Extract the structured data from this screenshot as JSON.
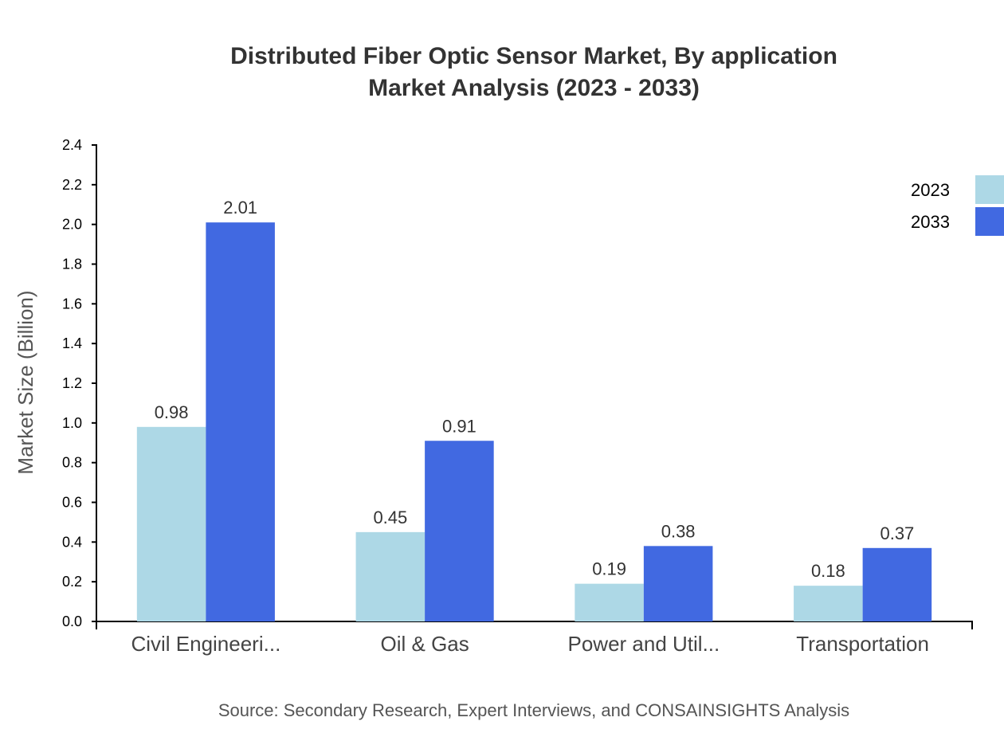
{
  "chart_data": {
    "type": "bar",
    "title": "Distributed Fiber Optic Sensor Market, By application",
    "subtitle": "Market Analysis (2023 - 2033)",
    "xlabel": "",
    "ylabel": "Market Size (Billion)",
    "ylim": [
      0,
      2.4
    ],
    "yticks": [
      "0.0",
      "0.2",
      "0.4",
      "0.6",
      "0.8",
      "1.0",
      "1.2",
      "1.4",
      "1.6",
      "1.8",
      "2.0",
      "2.2",
      "2.4"
    ],
    "categories": [
      "Civil Engineeri...",
      "Oil & Gas",
      "Power and Util...",
      "Transportation"
    ],
    "series": [
      {
        "name": "2023",
        "color": "#add8e6",
        "values": [
          0.98,
          0.45,
          0.19,
          0.18
        ]
      },
      {
        "name": "2033",
        "color": "#4169e1",
        "values": [
          2.01,
          0.91,
          0.38,
          0.37
        ]
      }
    ],
    "legend_position": "top-right",
    "grid": false,
    "source": "Source: Secondary Research, Expert Interviews, and CONSAINSIGHTS Analysis"
  }
}
